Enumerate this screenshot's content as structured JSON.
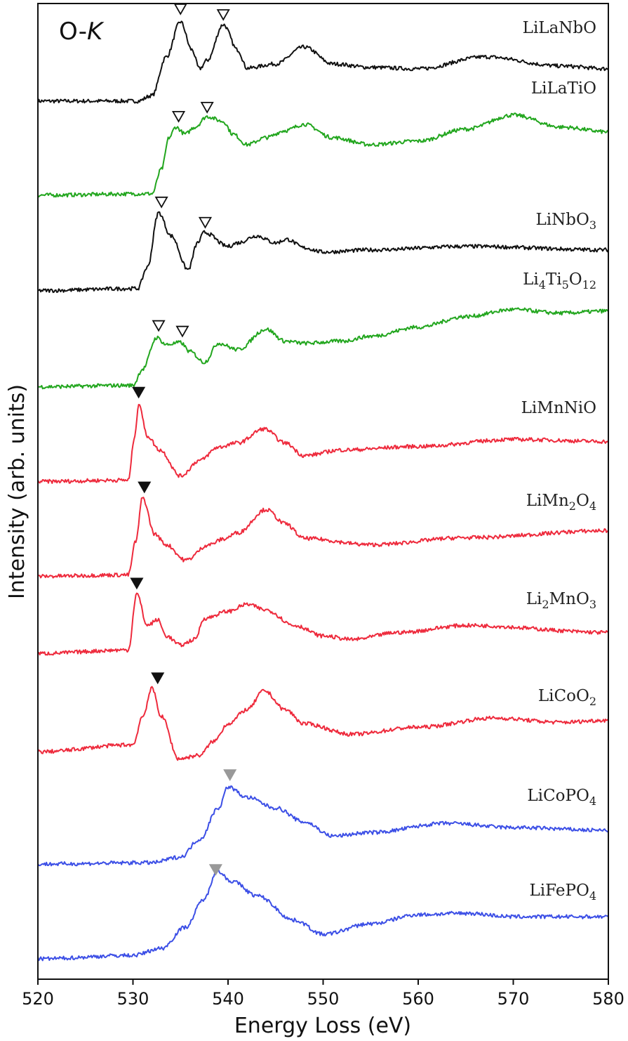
{
  "chart_data": {
    "type": "line",
    "title": "",
    "panel_label": {
      "prefix": "O-",
      "italic": "K"
    },
    "xlabel": "Energy Loss (eV)",
    "ylabel": "Intensity (arb. units)",
    "xlim": [
      520,
      580
    ],
    "xticks": [
      520,
      530,
      540,
      550,
      560,
      570,
      580
    ],
    "ylim": [
      0,
      139
    ],
    "yticks": [],
    "grid": false,
    "legend": "none (series labelled at right of each curve)",
    "colors": {
      "black": "#111111",
      "green": "#22a61e",
      "red": "#ee2a3c",
      "blue": "#3c4fe6",
      "gray_marker": "#999999"
    },
    "series": [
      {
        "name": "LiLaNbO",
        "color": "#111111",
        "points": [
          [
            520,
            125.1
          ],
          [
            530.5,
            125.1
          ],
          [
            532,
            125.9
          ],
          [
            533.5,
            131.4
          ],
          [
            535,
            136.4
          ],
          [
            536.2,
            132.4
          ],
          [
            537,
            129.7
          ],
          [
            537.8,
            130.9
          ],
          [
            539.5,
            136
          ],
          [
            541,
            132.4
          ],
          [
            542,
            129.8
          ],
          [
            545,
            130.4
          ],
          [
            548,
            132.8
          ],
          [
            551,
            130.4
          ],
          [
            555,
            129.9
          ],
          [
            560,
            129.7
          ],
          [
            567,
            131.4
          ],
          [
            575,
            130.1
          ],
          [
            580,
            129.7
          ]
        ]
      },
      {
        "name": "LiLaTiO",
        "color": "#22a61e",
        "points": [
          [
            520,
            111.7
          ],
          [
            532,
            111.9
          ],
          [
            533,
            115.4
          ],
          [
            533.8,
            119.9
          ],
          [
            534.5,
            121.4
          ],
          [
            535.5,
            120.4
          ],
          [
            536.5,
            121.4
          ],
          [
            537.8,
            122.9
          ],
          [
            539.5,
            122.2
          ],
          [
            540.5,
            120.4
          ],
          [
            542,
            118.9
          ],
          [
            544,
            119.9
          ],
          [
            546,
            120.9
          ],
          [
            548,
            121.8
          ],
          [
            551,
            119.9
          ],
          [
            555,
            118.9
          ],
          [
            560,
            119.4
          ],
          [
            565,
            121.1
          ],
          [
            570,
            123.1
          ],
          [
            575,
            121.4
          ],
          [
            580,
            120.7
          ]
        ]
      },
      {
        "name": "LiNbO3",
        "color": "#111111",
        "points": [
          [
            520,
            98.1
          ],
          [
            530.5,
            98.4
          ],
          [
            531.5,
            101.4
          ],
          [
            532.7,
            109.2
          ],
          [
            534,
            105.9
          ],
          [
            535.8,
            101.1
          ],
          [
            536.8,
            104.9
          ],
          [
            537.5,
            106.4
          ],
          [
            540,
            104.4
          ],
          [
            541,
            104.9
          ],
          [
            543,
            105.9
          ],
          [
            545,
            104.9
          ],
          [
            546.2,
            105.4
          ],
          [
            548,
            104.2
          ],
          [
            550,
            103.6
          ],
          [
            555,
            103.9
          ],
          [
            565,
            104.4
          ],
          [
            580,
            103.9
          ]
        ]
      },
      {
        "name": "Li4Ti5O12",
        "color": "#22a61e",
        "points": [
          [
            520,
            84.4
          ],
          [
            530,
            84.6
          ],
          [
            531,
            86.9
          ],
          [
            532.5,
            91.4
          ],
          [
            533.5,
            90.4
          ],
          [
            535,
            90.7
          ],
          [
            536,
            89.4
          ],
          [
            537.5,
            87.9
          ],
          [
            539,
            90.6
          ],
          [
            541,
            89.7
          ],
          [
            544,
            92.6
          ],
          [
            546,
            90.9
          ],
          [
            548,
            90.6
          ],
          [
            552,
            90.9
          ],
          [
            555,
            91.6
          ],
          [
            560,
            92.9
          ],
          [
            565,
            94.4
          ],
          [
            570,
            95.4
          ],
          [
            575,
            94.9
          ],
          [
            580,
            95.2
          ]
        ]
      },
      {
        "name": "LiMnNiO",
        "color": "#ee2a3c",
        "points": [
          [
            520,
            70.9
          ],
          [
            529.5,
            71.1
          ],
          [
            530.2,
            77.4
          ],
          [
            530.6,
            82.1
          ],
          [
            531.5,
            77.4
          ],
          [
            532.8,
            75.4
          ],
          [
            535,
            71.7
          ],
          [
            537,
            73.9
          ],
          [
            539,
            75.8
          ],
          [
            541,
            76.4
          ],
          [
            543.8,
            78.4
          ],
          [
            546,
            76.4
          ],
          [
            548,
            74.6
          ],
          [
            552,
            75.4
          ],
          [
            560,
            75.9
          ],
          [
            570,
            76.9
          ],
          [
            580,
            76.6
          ]
        ]
      },
      {
        "name": "LiMn2O4",
        "color": "#ee2a3c",
        "points": [
          [
            520,
            57.4
          ],
          [
            529.5,
            57.6
          ],
          [
            530.3,
            62.4
          ],
          [
            531,
            68.6
          ],
          [
            532.3,
            63.4
          ],
          [
            533.5,
            61.9
          ],
          [
            535.5,
            59.7
          ],
          [
            538,
            61.9
          ],
          [
            539.5,
            62.7
          ],
          [
            541,
            63.6
          ],
          [
            544,
            66.9
          ],
          [
            546,
            64.9
          ],
          [
            548,
            62.8
          ],
          [
            555,
            61.9
          ],
          [
            565,
            62.9
          ],
          [
            580,
            63.9
          ]
        ]
      },
      {
        "name": "Li2MnO3",
        "color": "#ee2a3c",
        "points": [
          [
            520,
            46.4
          ],
          [
            529.5,
            46.9
          ],
          [
            530.4,
            54.9
          ],
          [
            531.5,
            50.4
          ],
          [
            532.6,
            51.2
          ],
          [
            533.5,
            48.9
          ],
          [
            535,
            47.6
          ],
          [
            536.5,
            48.4
          ],
          [
            537.5,
            51.4
          ],
          [
            540,
            52.4
          ],
          [
            542,
            53.4
          ],
          [
            544,
            52.6
          ],
          [
            547,
            50.4
          ],
          [
            550,
            48.9
          ],
          [
            553,
            48.4
          ],
          [
            558,
            49.4
          ],
          [
            565,
            50.4
          ],
          [
            580,
            49.4
          ]
        ]
      },
      {
        "name": "LiCoO2",
        "color": "#ee2a3c",
        "points": [
          [
            520,
            32.4
          ],
          [
            530,
            33.4
          ],
          [
            531,
            37.4
          ],
          [
            532,
            41.4
          ],
          [
            533,
            37.4
          ],
          [
            534.8,
            31.4
          ],
          [
            537,
            31.9
          ],
          [
            538.5,
            33.9
          ],
          [
            540,
            36.4
          ],
          [
            542,
            38.4
          ],
          [
            543.8,
            41.1
          ],
          [
            546,
            38.4
          ],
          [
            548,
            36.4
          ],
          [
            553,
            34.9
          ],
          [
            560,
            35.9
          ],
          [
            568,
            37.2
          ],
          [
            575,
            36.6
          ],
          [
            580,
            36.9
          ]
        ]
      },
      {
        "name": "LiCoPO4",
        "color": "#3c4fe6",
        "points": [
          [
            520,
            16.4
          ],
          [
            532,
            16.6
          ],
          [
            535,
            17.4
          ],
          [
            537,
            19.9
          ],
          [
            539,
            24.4
          ],
          [
            540,
            27.4
          ],
          [
            542,
            25.9
          ],
          [
            545,
            24.4
          ],
          [
            548,
            22.4
          ],
          [
            551,
            20.4
          ],
          [
            555,
            20.9
          ],
          [
            563,
            22.2
          ],
          [
            570,
            21.6
          ],
          [
            580,
            21.2
          ]
        ]
      },
      {
        "name": "LiFePO4",
        "color": "#3c4fe6",
        "points": [
          [
            520,
            2.9
          ],
          [
            530,
            3.4
          ],
          [
            533,
            4.4
          ],
          [
            535.5,
            7.4
          ],
          [
            537.5,
            11.4
          ],
          [
            538.8,
            15.4
          ],
          [
            540.5,
            13.9
          ],
          [
            543,
            11.9
          ],
          [
            547,
            8.4
          ],
          [
            550,
            6.4
          ],
          [
            555,
            7.9
          ],
          [
            560,
            9.2
          ],
          [
            565,
            9.4
          ],
          [
            570,
            8.9
          ],
          [
            580,
            8.9
          ]
        ]
      }
    ],
    "markers": [
      {
        "x": 535,
        "y": 138.2,
        "style": "open"
      },
      {
        "x": 539.5,
        "y": 137.4,
        "style": "open"
      },
      {
        "x": 534.8,
        "y": 122.9,
        "style": "open"
      },
      {
        "x": 537.8,
        "y": 124.2,
        "style": "open"
      },
      {
        "x": 533,
        "y": 110.7,
        "style": "open"
      },
      {
        "x": 537.6,
        "y": 107.8,
        "style": "open"
      },
      {
        "x": 532.7,
        "y": 93.1,
        "style": "open"
      },
      {
        "x": 535.2,
        "y": 92.3,
        "style": "open"
      },
      {
        "x": 530.6,
        "y": 83.6,
        "style": "filled"
      },
      {
        "x": 531.2,
        "y": 70.1,
        "style": "filled"
      },
      {
        "x": 530.4,
        "y": 56.4,
        "style": "filled"
      },
      {
        "x": 532.6,
        "y": 42.9,
        "style": "filled"
      },
      {
        "x": 540.2,
        "y": 29.1,
        "style": "gray"
      },
      {
        "x": 538.7,
        "y": 15.6,
        "style": "gray"
      }
    ]
  }
}
